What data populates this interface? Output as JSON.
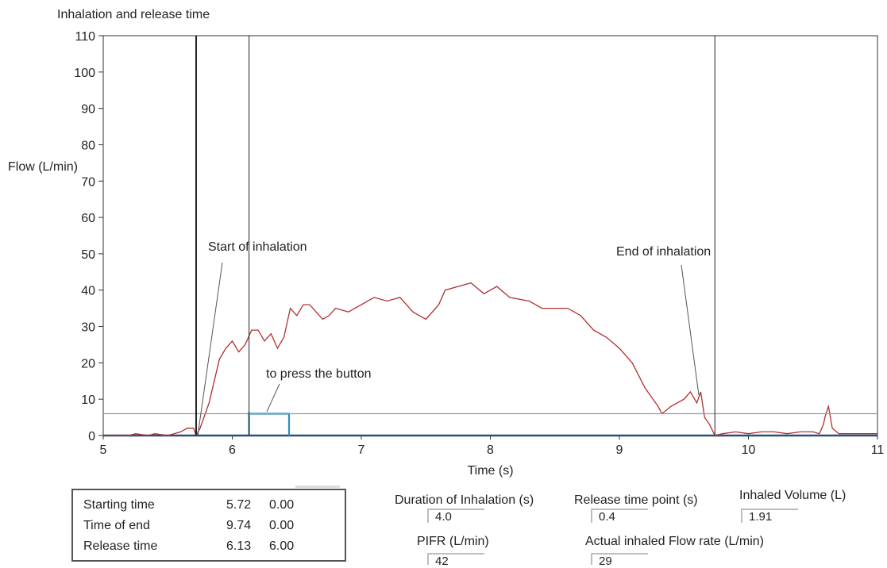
{
  "chart_data": {
    "type": "line",
    "title": "Inhalation and release time",
    "xlabel": "Time (s)",
    "ylabel": "Flow (L/min)",
    "xlim": [
      5,
      11
    ],
    "ylim": [
      0,
      110
    ],
    "xticks": [
      5,
      6,
      7,
      8,
      9,
      10,
      11
    ],
    "yticks": [
      0,
      10,
      20,
      30,
      40,
      50,
      60,
      70,
      80,
      90,
      100,
      110
    ],
    "threshold_y": 6,
    "vertical_markers": [
      5.72,
      6.13,
      9.74
    ],
    "series": [
      {
        "color": "#b03030",
        "x": [
          5.0,
          5.2,
          5.25,
          5.35,
          5.4,
          5.5,
          5.6,
          5.65,
          5.7,
          5.72,
          5.75,
          5.78,
          5.82,
          5.86,
          5.9,
          5.95,
          6.0,
          6.05,
          6.1,
          6.15,
          6.2,
          6.25,
          6.3,
          6.35,
          6.4,
          6.45,
          6.5,
          6.55,
          6.6,
          6.7,
          6.75,
          6.8,
          6.9,
          7.0,
          7.1,
          7.2,
          7.3,
          7.4,
          7.5,
          7.6,
          7.65,
          7.75,
          7.85,
          7.95,
          8.05,
          8.15,
          8.3,
          8.4,
          8.5,
          8.6,
          8.7,
          8.8,
          8.9,
          9.0,
          9.1,
          9.2,
          9.3,
          9.33,
          9.4,
          9.5,
          9.55,
          9.6,
          9.63,
          9.66,
          9.7,
          9.74,
          9.8,
          9.9,
          10.0,
          10.1,
          10.2,
          10.3,
          10.4,
          10.5,
          10.55,
          10.58,
          10.6,
          10.62,
          10.65,
          10.7,
          10.8,
          11.0
        ],
        "y": [
          0,
          0,
          0.5,
          0,
          0.5,
          0,
          1,
          2,
          2,
          0,
          2,
          5,
          9,
          15,
          21,
          24,
          26,
          23,
          25,
          29,
          29,
          26,
          28,
          24,
          27,
          35,
          33,
          36,
          36,
          32,
          33,
          35,
          34,
          36,
          38,
          37,
          38,
          34,
          32,
          36,
          40,
          41,
          42,
          39,
          41,
          38,
          37,
          35,
          35,
          35,
          33,
          29,
          27,
          24,
          20,
          13,
          8,
          6,
          8,
          10,
          12,
          9,
          12,
          5,
          3,
          0,
          0.5,
          1,
          0.5,
          1,
          1,
          0.5,
          1,
          1,
          0.5,
          3,
          6,
          8,
          2,
          0.5,
          0.5,
          0.5
        ]
      },
      {
        "color": "#2f8fc1",
        "x": [
          6.13,
          6.13,
          6.44,
          6.44
        ],
        "y": [
          0,
          6,
          6,
          0
        ]
      }
    ],
    "annotations": [
      {
        "text": "Start of inhalation"
      },
      {
        "text": "End of inhalation"
      },
      {
        "text": "to press the button"
      }
    ]
  },
  "info_table": [
    {
      "label": "Starting time",
      "v1": "5.72",
      "v2": "0.00"
    },
    {
      "label": "Time of end",
      "v1": "9.74",
      "v2": "0.00"
    },
    {
      "label": "Release time",
      "v1": "6.13",
      "v2": "6.00"
    }
  ],
  "fields": {
    "duration": {
      "label": "Duration of Inhalation (s)",
      "value": "4.0"
    },
    "release_point": {
      "label": "Release time point (s)",
      "value": "0.4"
    },
    "inhaled_volume": {
      "label": "Inhaled Volume (L)",
      "value": "1.91"
    },
    "pifr": {
      "label": "PIFR (L/min)",
      "value": "42"
    },
    "actual_flow": {
      "label": "Actual inhaled Flow rate (L/min)",
      "value": "29"
    }
  }
}
